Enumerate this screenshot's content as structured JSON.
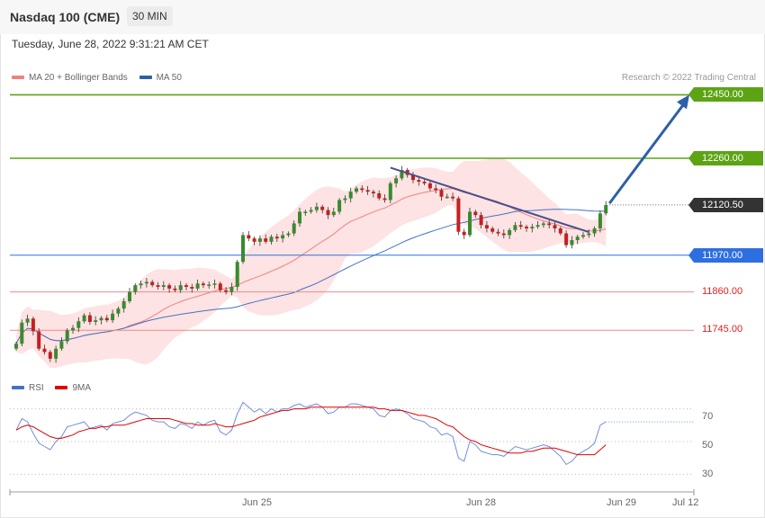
{
  "header": {
    "title": "Nasdaq 100 (CME)",
    "timeframe": "30 MIN",
    "datetime": "Tuesday, June 28, 2022 9:31:21 AM CET"
  },
  "legend": {
    "ma20_label": "MA 20 + Bollinger Bands",
    "ma50_label": "MA 50",
    "credit": "Research © 2022 Trading Central"
  },
  "rsi_legend": {
    "rsi_label": "RSI",
    "ma_label": "9MA"
  },
  "colors": {
    "resistance": "#5ca414",
    "support": "#ee8a8a",
    "pivot": "#2e6fe0",
    "current": "#333333",
    "bull": "#3a8a2e",
    "bear": "#c42020",
    "ma20": "#f08080",
    "ma50": "#4472c4",
    "band": "#fde3e3",
    "arrow": "#2e5fa8"
  },
  "levels": [
    {
      "value": "12450.00",
      "type": "resistance",
      "tag": true
    },
    {
      "value": "12260.00",
      "type": "resistance",
      "tag": true
    },
    {
      "value": "12120.50",
      "type": "current",
      "tag": true
    },
    {
      "value": "11970.00",
      "type": "pivot",
      "tag": true
    },
    {
      "value": "11860.00",
      "type": "support",
      "tag": false
    },
    {
      "value": "11745.00",
      "type": "support",
      "tag": false
    }
  ],
  "rsi_ticks": [
    "70",
    "50",
    "30"
  ],
  "x_labels": [
    "Jun 25",
    "Jun 28",
    "Jun 29",
    "Jul 12"
  ],
  "chart_data": [
    {
      "type": "candlestick",
      "title": "Nasdaq 100 (CME)",
      "ylim": [
        11630,
        12470
      ],
      "closes": [
        11705,
        11768,
        11780,
        11742,
        11690,
        11680,
        11660,
        11690,
        11712,
        11745,
        11752,
        11772,
        11790,
        11770,
        11775,
        11782,
        11775,
        11795,
        11810,
        11832,
        11860,
        11880,
        11885,
        11890,
        11880,
        11875,
        11880,
        11870,
        11865,
        11880,
        11875,
        11870,
        11885,
        11880,
        11882,
        11885,
        11865,
        11860,
        11875,
        11950,
        12030,
        12020,
        12010,
        12020,
        12010,
        12025,
        12020,
        12030,
        12035,
        12065,
        12100,
        12100,
        12105,
        12115,
        12105,
        12090,
        12100,
        12135,
        12140,
        12160,
        12170,
        12165,
        12160,
        12155,
        12140,
        12135,
        12185,
        12200,
        12225,
        12210,
        12195,
        12190,
        12185,
        12170,
        12165,
        12145,
        12145,
        12140,
        12040,
        12030,
        12100,
        12090,
        12060,
        12050,
        12040,
        12035,
        12030,
        12045,
        12060,
        12055,
        12050,
        12055,
        12060,
        12065,
        12060,
        12050,
        12035,
        12000,
        12015,
        12025,
        12030,
        12035,
        12050,
        12095,
        12120
      ],
      "x_ticks": [
        "Jun 25",
        "Jun 28",
        "Jun 29",
        "Jul 12"
      ]
    },
    {
      "type": "line",
      "title": "RSI",
      "ylim": [
        22,
        78
      ],
      "series": [
        {
          "name": "RSI",
          "values": [
            57,
            64,
            62,
            55,
            49,
            47,
            45,
            50,
            53,
            59,
            60,
            61,
            62,
            58,
            59,
            60,
            57,
            61,
            62,
            63,
            66,
            68,
            67,
            66,
            63,
            62,
            62,
            59,
            58,
            61,
            60,
            58,
            62,
            60,
            62,
            63,
            56,
            54,
            57,
            67,
            74,
            71,
            68,
            70,
            67,
            70,
            68,
            70,
            70,
            72,
            73,
            71,
            72,
            73,
            71,
            67,
            68,
            71,
            71,
            73,
            73,
            72,
            71,
            70,
            66,
            65,
            69,
            70,
            69,
            67,
            64,
            63,
            62,
            59,
            58,
            54,
            55,
            53,
            40,
            38,
            50,
            48,
            44,
            43,
            42,
            42,
            41,
            44,
            47,
            46,
            45,
            46,
            47,
            48,
            47,
            44,
            41,
            36,
            38,
            42,
            44,
            46,
            49,
            60,
            62
          ]
        },
        {
          "name": "9MA",
          "values": [
            57,
            59,
            60,
            59,
            57,
            55,
            53,
            52,
            52,
            53,
            54,
            56,
            57,
            58,
            58,
            59,
            59,
            60,
            60,
            60,
            61,
            62,
            63,
            64,
            64,
            64,
            64,
            64,
            63,
            62,
            61,
            61,
            60,
            60,
            60,
            61,
            60,
            59,
            59,
            60,
            61,
            62,
            63,
            65,
            66,
            67,
            68,
            69,
            69,
            70,
            70,
            70,
            71,
            71,
            71,
            71,
            71,
            71,
            71,
            71,
            71,
            71,
            71,
            71,
            70,
            70,
            69,
            69,
            69,
            68,
            67,
            66,
            66,
            65,
            64,
            62,
            60,
            59,
            56,
            53,
            51,
            50,
            48,
            47,
            46,
            45,
            44,
            43,
            43,
            43,
            44,
            44,
            45,
            46,
            46,
            46,
            45,
            44,
            43,
            42,
            42,
            42,
            42,
            45,
            48
          ]
        }
      ],
      "reference_lines": [
        70,
        50,
        30
      ]
    }
  ]
}
